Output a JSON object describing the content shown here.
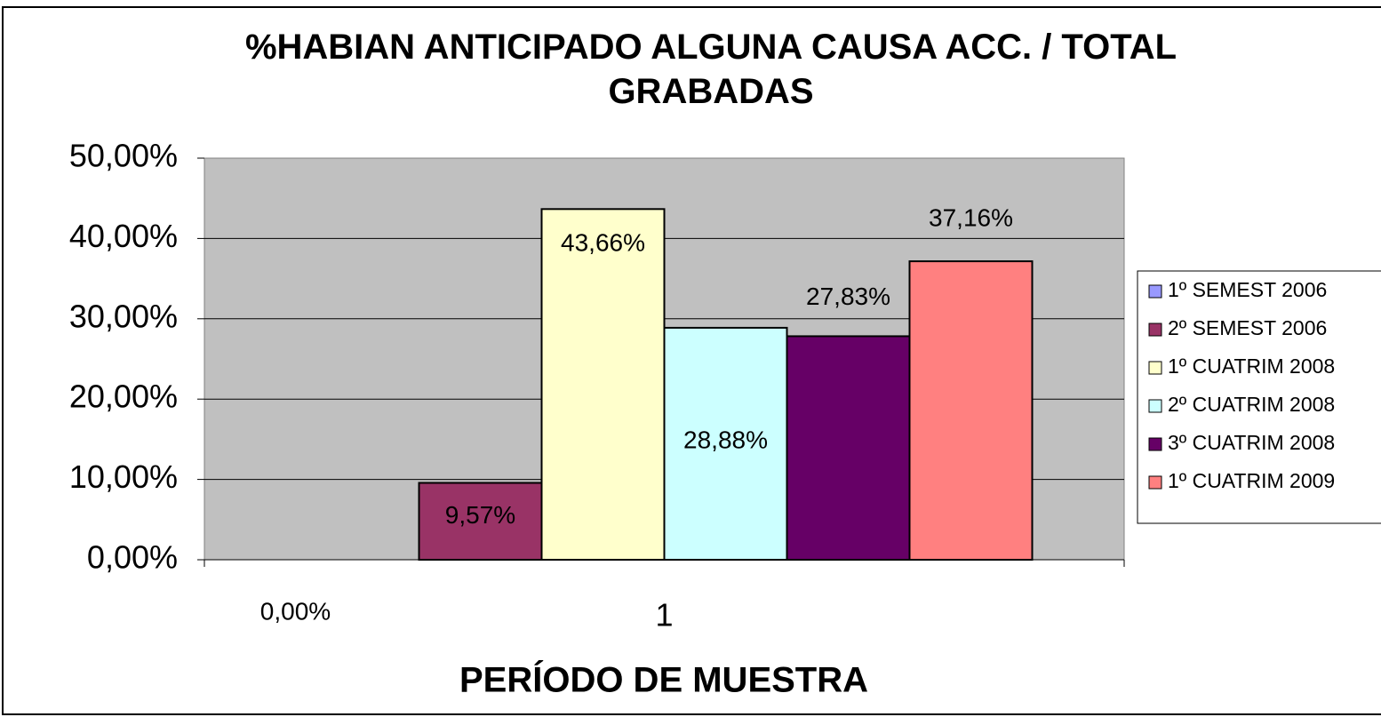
{
  "chart_data": {
    "type": "bar",
    "title": "%HABIAN ANTICIPADO ALGUNA CAUSA ACC. / TOTAL GRABADAS",
    "xlabel": "PERÍODO DE MUESTRA",
    "categories": [
      "1"
    ],
    "series": [
      {
        "name": "1º SEMEST 2006",
        "color": "#9999ff",
        "values": [
          0
        ],
        "value_labels": [
          "0,00%"
        ]
      },
      {
        "name": "2º SEMEST 2006",
        "color": "#993366",
        "values": [
          9.57
        ],
        "value_labels": [
          "9,57%"
        ]
      },
      {
        "name": "1º CUATRIM 2008",
        "color": "#ffffcc",
        "values": [
          43.66
        ],
        "value_labels": [
          "43,66%"
        ]
      },
      {
        "name": "2º CUATRIM 2008",
        "color": "#ccffff",
        "values": [
          28.88
        ],
        "value_labels": [
          "28,88%"
        ]
      },
      {
        "name": "3º CUATRIM 2008",
        "color": "#660066",
        "values": [
          27.83
        ],
        "value_labels": [
          "27,83%"
        ]
      },
      {
        "name": "1º CUATRIM 2009",
        "color": "#ff8080",
        "values": [
          37.16
        ],
        "value_labels": [
          "37,16%"
        ]
      }
    ],
    "ylim": [
      0,
      50
    ],
    "yticks": [
      {
        "value": 0,
        "label": "0,00%"
      },
      {
        "value": 10,
        "label": "10,00%"
      },
      {
        "value": 20,
        "label": "20,00%"
      },
      {
        "value": 30,
        "label": "30,00%"
      },
      {
        "value": 40,
        "label": "40,00%"
      },
      {
        "value": 50,
        "label": "50,00%"
      }
    ],
    "grid": true,
    "legend": "right"
  }
}
